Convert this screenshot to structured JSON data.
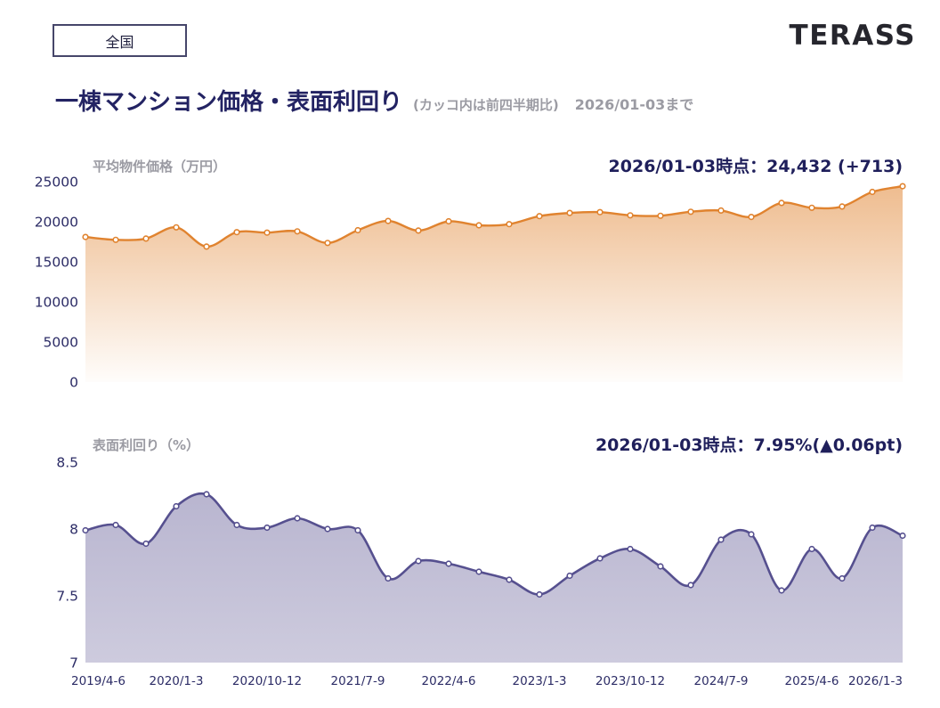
{
  "header": {
    "region_label": "全国",
    "logo_text": "TERASS"
  },
  "title": {
    "main": "一棟マンション価格・表面利回り",
    "note": "(カッコ内は前四半期比)",
    "period": "2026/01-03まで"
  },
  "colors": {
    "navy_text": "#232363",
    "axis_text": "#2c2c66",
    "gray_text": "#9b9ba3",
    "price_line": "#e0832f",
    "price_fill": "#e0832f",
    "yield_line": "#56508f",
    "yield_fill": "#5a5290"
  },
  "chart_data": [
    {
      "type": "area",
      "title": "平均物件価格（万円）",
      "annotation": "2026/01-03時点：24,432 (+713)",
      "latest_value": 24432,
      "latest_change": "+713",
      "categories": [
        "2019/4-6",
        "2019/7-9",
        "2019/10-12",
        "2020/1-3",
        "2020/4-6",
        "2020/7-9",
        "2020/10-12",
        "2021/1-3",
        "2021/4-6",
        "2021/7-9",
        "2021/10-12",
        "2022/1-3",
        "2022/4-6",
        "2022/7-9",
        "2022/10-12",
        "2023/1-3",
        "2023/4-6",
        "2023/7-9",
        "2023/10-12",
        "2024/1-3",
        "2024/4-6",
        "2024/7-9",
        "2024/10-12",
        "2025/1-3",
        "2025/4-6",
        "2025/7-9",
        "2025/10-12",
        "2026/1-3"
      ],
      "values": [
        18100,
        17750,
        17900,
        19300,
        16900,
        18700,
        18650,
        18800,
        17350,
        18950,
        20100,
        18900,
        20050,
        19550,
        19700,
        20700,
        21100,
        21200,
        20800,
        20750,
        21250,
        21400,
        20600,
        22350,
        21750,
        21900,
        23719,
        24432
      ],
      "ylim": [
        0,
        25000
      ],
      "yticks": [
        0,
        5000,
        10000,
        15000,
        20000,
        25000
      ],
      "x_tick_labels": [],
      "grid": false,
      "legend": "none",
      "line_color": "#e0832f",
      "fill_color": "#e0832f",
      "fill_opacity_top": 0.55,
      "fill_opacity_bottom": 0.02,
      "gradient_id": "grad-price"
    },
    {
      "type": "area",
      "title": "表面利回り（%）",
      "annotation": "2026/01-03時点：7.95%(▲0.06pt)",
      "latest_value": 7.95,
      "latest_change": "▲0.06pt",
      "categories": [
        "2019/4-6",
        "2019/7-9",
        "2019/10-12",
        "2020/1-3",
        "2020/4-6",
        "2020/7-9",
        "2020/10-12",
        "2021/1-3",
        "2021/4-6",
        "2021/7-9",
        "2021/10-12",
        "2022/1-3",
        "2022/4-6",
        "2022/7-9",
        "2022/10-12",
        "2023/1-3",
        "2023/4-6",
        "2023/7-9",
        "2023/10-12",
        "2024/1-3",
        "2024/4-6",
        "2024/7-9",
        "2024/10-12",
        "2025/1-3",
        "2025/4-6",
        "2025/7-9",
        "2025/10-12",
        "2026/1-3"
      ],
      "values": [
        7.99,
        8.03,
        7.89,
        8.17,
        8.26,
        8.03,
        8.01,
        8.08,
        8.0,
        7.99,
        7.63,
        7.76,
        7.74,
        7.68,
        7.62,
        7.51,
        7.65,
        7.78,
        7.85,
        7.72,
        7.58,
        7.92,
        7.96,
        7.54,
        7.85,
        7.63,
        8.01,
        7.95
      ],
      "ylim": [
        7,
        8.5
      ],
      "yticks": [
        7,
        7.5,
        8,
        8.5
      ],
      "x_tick_labels": [
        "2019/4-6",
        "2020/1-3",
        "2020/10-12",
        "2021/7-9",
        "2022/4-6",
        "2023/1-3",
        "2023/10-12",
        "2024/7-9",
        "2025/4-6",
        "2026/1-3"
      ],
      "grid": false,
      "legend": "none",
      "line_color": "#56508f",
      "fill_color": "#5a5290",
      "fill_opacity_top": 0.45,
      "fill_opacity_bottom": 0.3,
      "gradient_id": "grad-yield"
    }
  ]
}
